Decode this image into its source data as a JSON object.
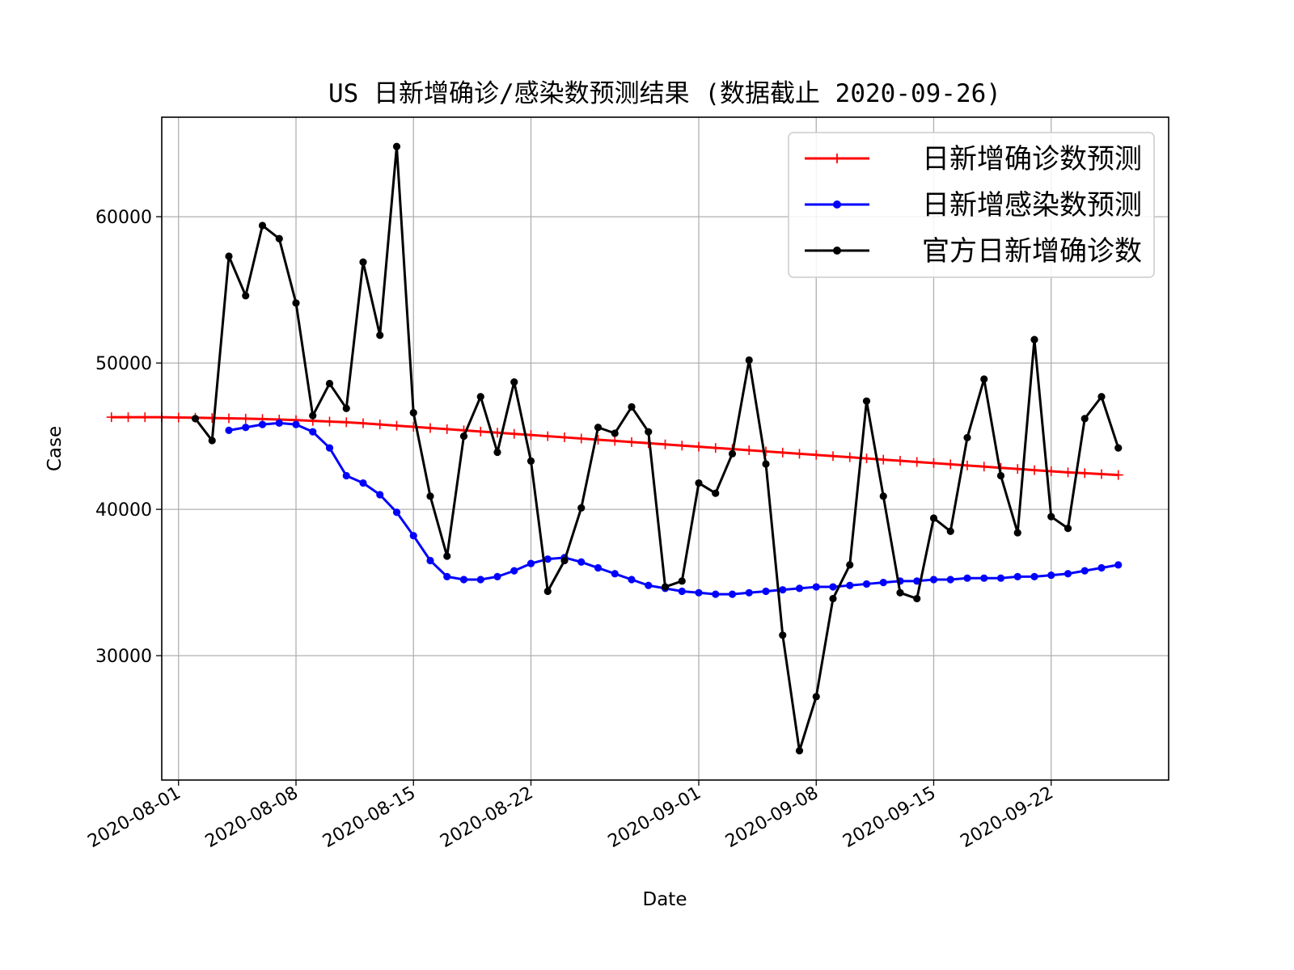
{
  "chart_data": {
    "type": "line",
    "title": "US 日新增确诊/感染数预测结果 (数据截止 2020-09-26)",
    "xlabel": "Date",
    "ylabel": "Case",
    "x_start": "2020-08-02",
    "x_end": "2020-09-26",
    "xlim": [
      "2020-07-31",
      "2020-09-29"
    ],
    "ylim": [
      21500,
      66800
    ],
    "x_ticks": [
      "2020-08-01",
      "2020-08-08",
      "2020-08-15",
      "2020-08-22",
      "2020-09-01",
      "2020-09-08",
      "2020-09-15",
      "2020-09-22"
    ],
    "y_ticks": [
      30000,
      40000,
      50000,
      60000
    ],
    "y_tick_labels": [
      "30000",
      "40000",
      "50000",
      "60000"
    ],
    "grid": true,
    "legend_position": "top-right",
    "series": [
      {
        "name": "日新增确诊数预测",
        "color": "#ff0000",
        "marker": "plus",
        "values": [
          46300,
          46300,
          46300,
          46300,
          46280,
          46260,
          46240,
          46220,
          46200,
          46170,
          46140,
          46100,
          46050,
          46000,
          45950,
          45880,
          45800,
          45720,
          45640,
          45560,
          45480,
          45400,
          45320,
          45240,
          45160,
          45080,
          45000,
          44920,
          44840,
          44760,
          44680,
          44600,
          44520,
          44440,
          44360,
          44280,
          44200,
          44120,
          44040,
          43960,
          43880,
          43800,
          43720,
          43640,
          43560,
          43480,
          43400,
          43320,
          43240,
          43160,
          43080,
          43000,
          42920,
          42840,
          42760,
          42680,
          42600,
          42530,
          42470,
          42410,
          42350
        ]
      },
      {
        "name": "日新增感染数预测",
        "color": "#0000ff",
        "marker": "dot",
        "values": [
          45400,
          45600,
          45800,
          45900,
          45800,
          45300,
          44200,
          42300,
          41800,
          41000,
          39800,
          38200,
          36500,
          35400,
          35200,
          35200,
          35400,
          35800,
          36300,
          36600,
          36700,
          36400,
          36000,
          35600,
          35200,
          34800,
          34600,
          34400,
          34300,
          34200,
          34200,
          34300,
          34400,
          34500,
          34600,
          34700,
          34700,
          34800,
          34900,
          35000,
          35100,
          35100,
          35200,
          35200,
          35300,
          35300,
          35300,
          35400,
          35400,
          35500,
          35600,
          35800,
          36000,
          36200
        ]
      },
      {
        "name": "官方日新增确诊数",
        "color": "#000000",
        "marker": "dot",
        "values": [
          46200,
          44700,
          57300,
          54600,
          59400,
          58500,
          54100,
          46400,
          48600,
          46900,
          56900,
          51900,
          64800,
          46600,
          40900,
          36800,
          45000,
          47700,
          43900,
          48700,
          43300,
          34400,
          36500,
          40100,
          45600,
          45200,
          47000,
          45300,
          34700,
          35100,
          41800,
          41100,
          43800,
          50200,
          43100,
          31400,
          23500,
          27200,
          33900,
          36200,
          47400,
          40900,
          34300,
          33900,
          39400,
          38500,
          44900,
          48900,
          42300,
          38400,
          51600,
          39500,
          38700,
          46200,
          47700,
          44200
        ]
      }
    ]
  }
}
